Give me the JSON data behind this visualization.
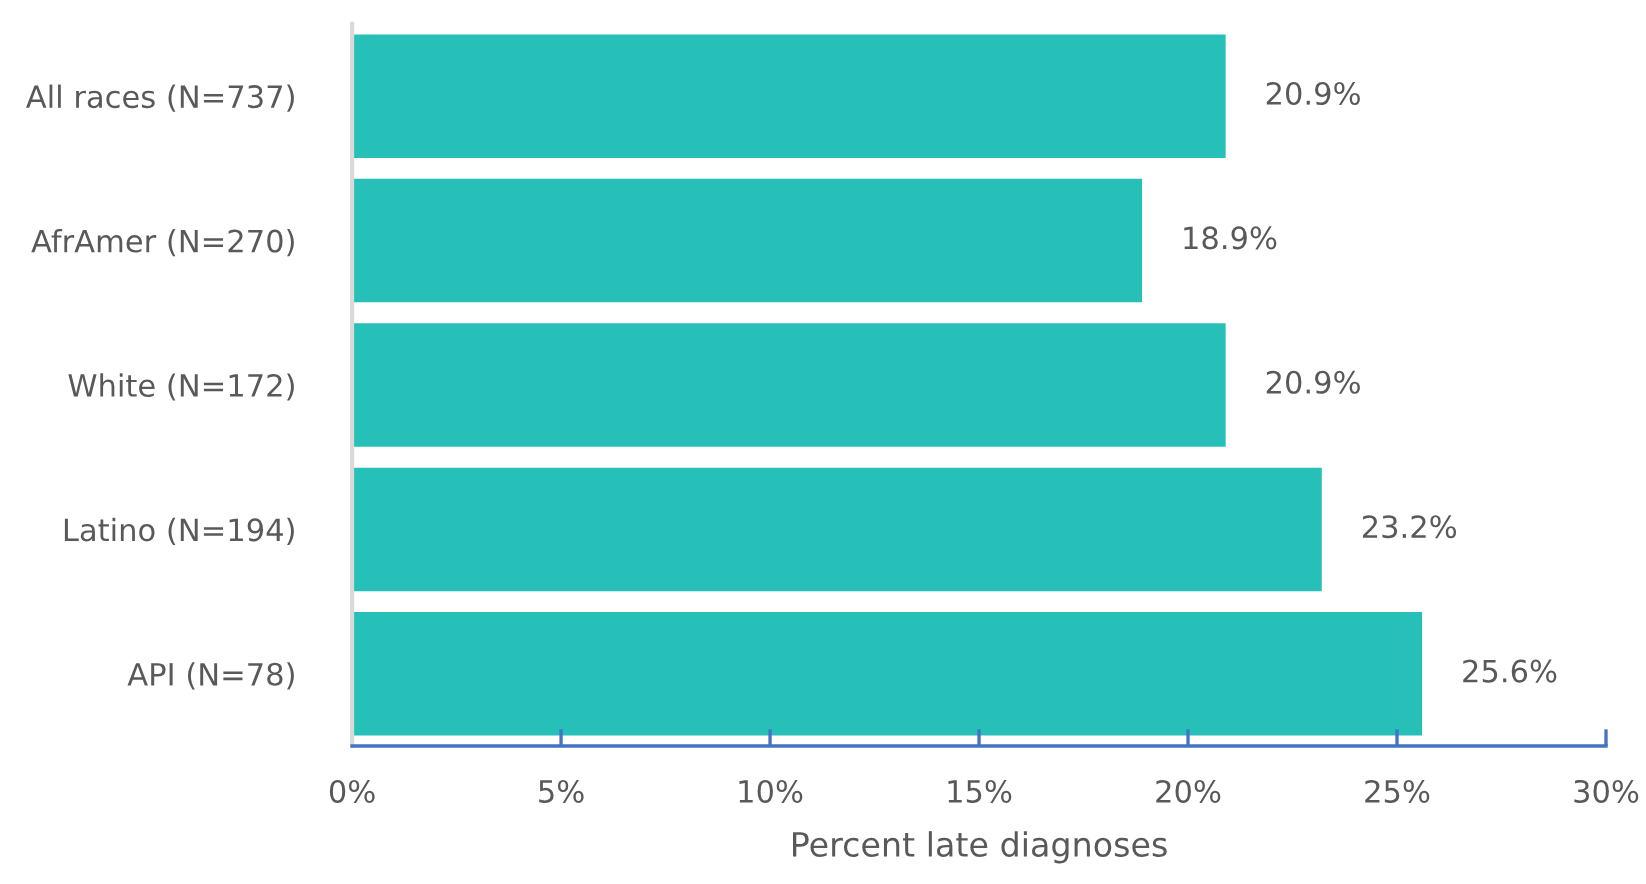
{
  "chart_data": {
    "type": "bar",
    "orientation": "horizontal",
    "xlabel": "Percent late diagnoses",
    "categories": [
      "All races (N=737)",
      "AfrAmer (N=270)",
      "White (N=172)",
      "Latino (N=194)",
      "API (N=78)"
    ],
    "values": [
      20.9,
      18.9,
      20.9,
      23.2,
      25.6
    ],
    "value_labels": [
      "20.9%",
      "18.9%",
      "20.9%",
      "23.2%",
      "25.6%"
    ],
    "color": "#27c0b9",
    "xlim": [
      0,
      30
    ],
    "xticks": [
      {
        "value": 0,
        "label": "0%"
      },
      {
        "value": 5,
        "label": "5%"
      },
      {
        "value": 10,
        "label": "10%"
      },
      {
        "value": 15,
        "label": "15%"
      },
      {
        "value": 20,
        "label": "20%"
      },
      {
        "value": 25,
        "label": "25%"
      },
      {
        "value": 30,
        "label": "30%"
      }
    ],
    "grid": false,
    "legend": false
  }
}
